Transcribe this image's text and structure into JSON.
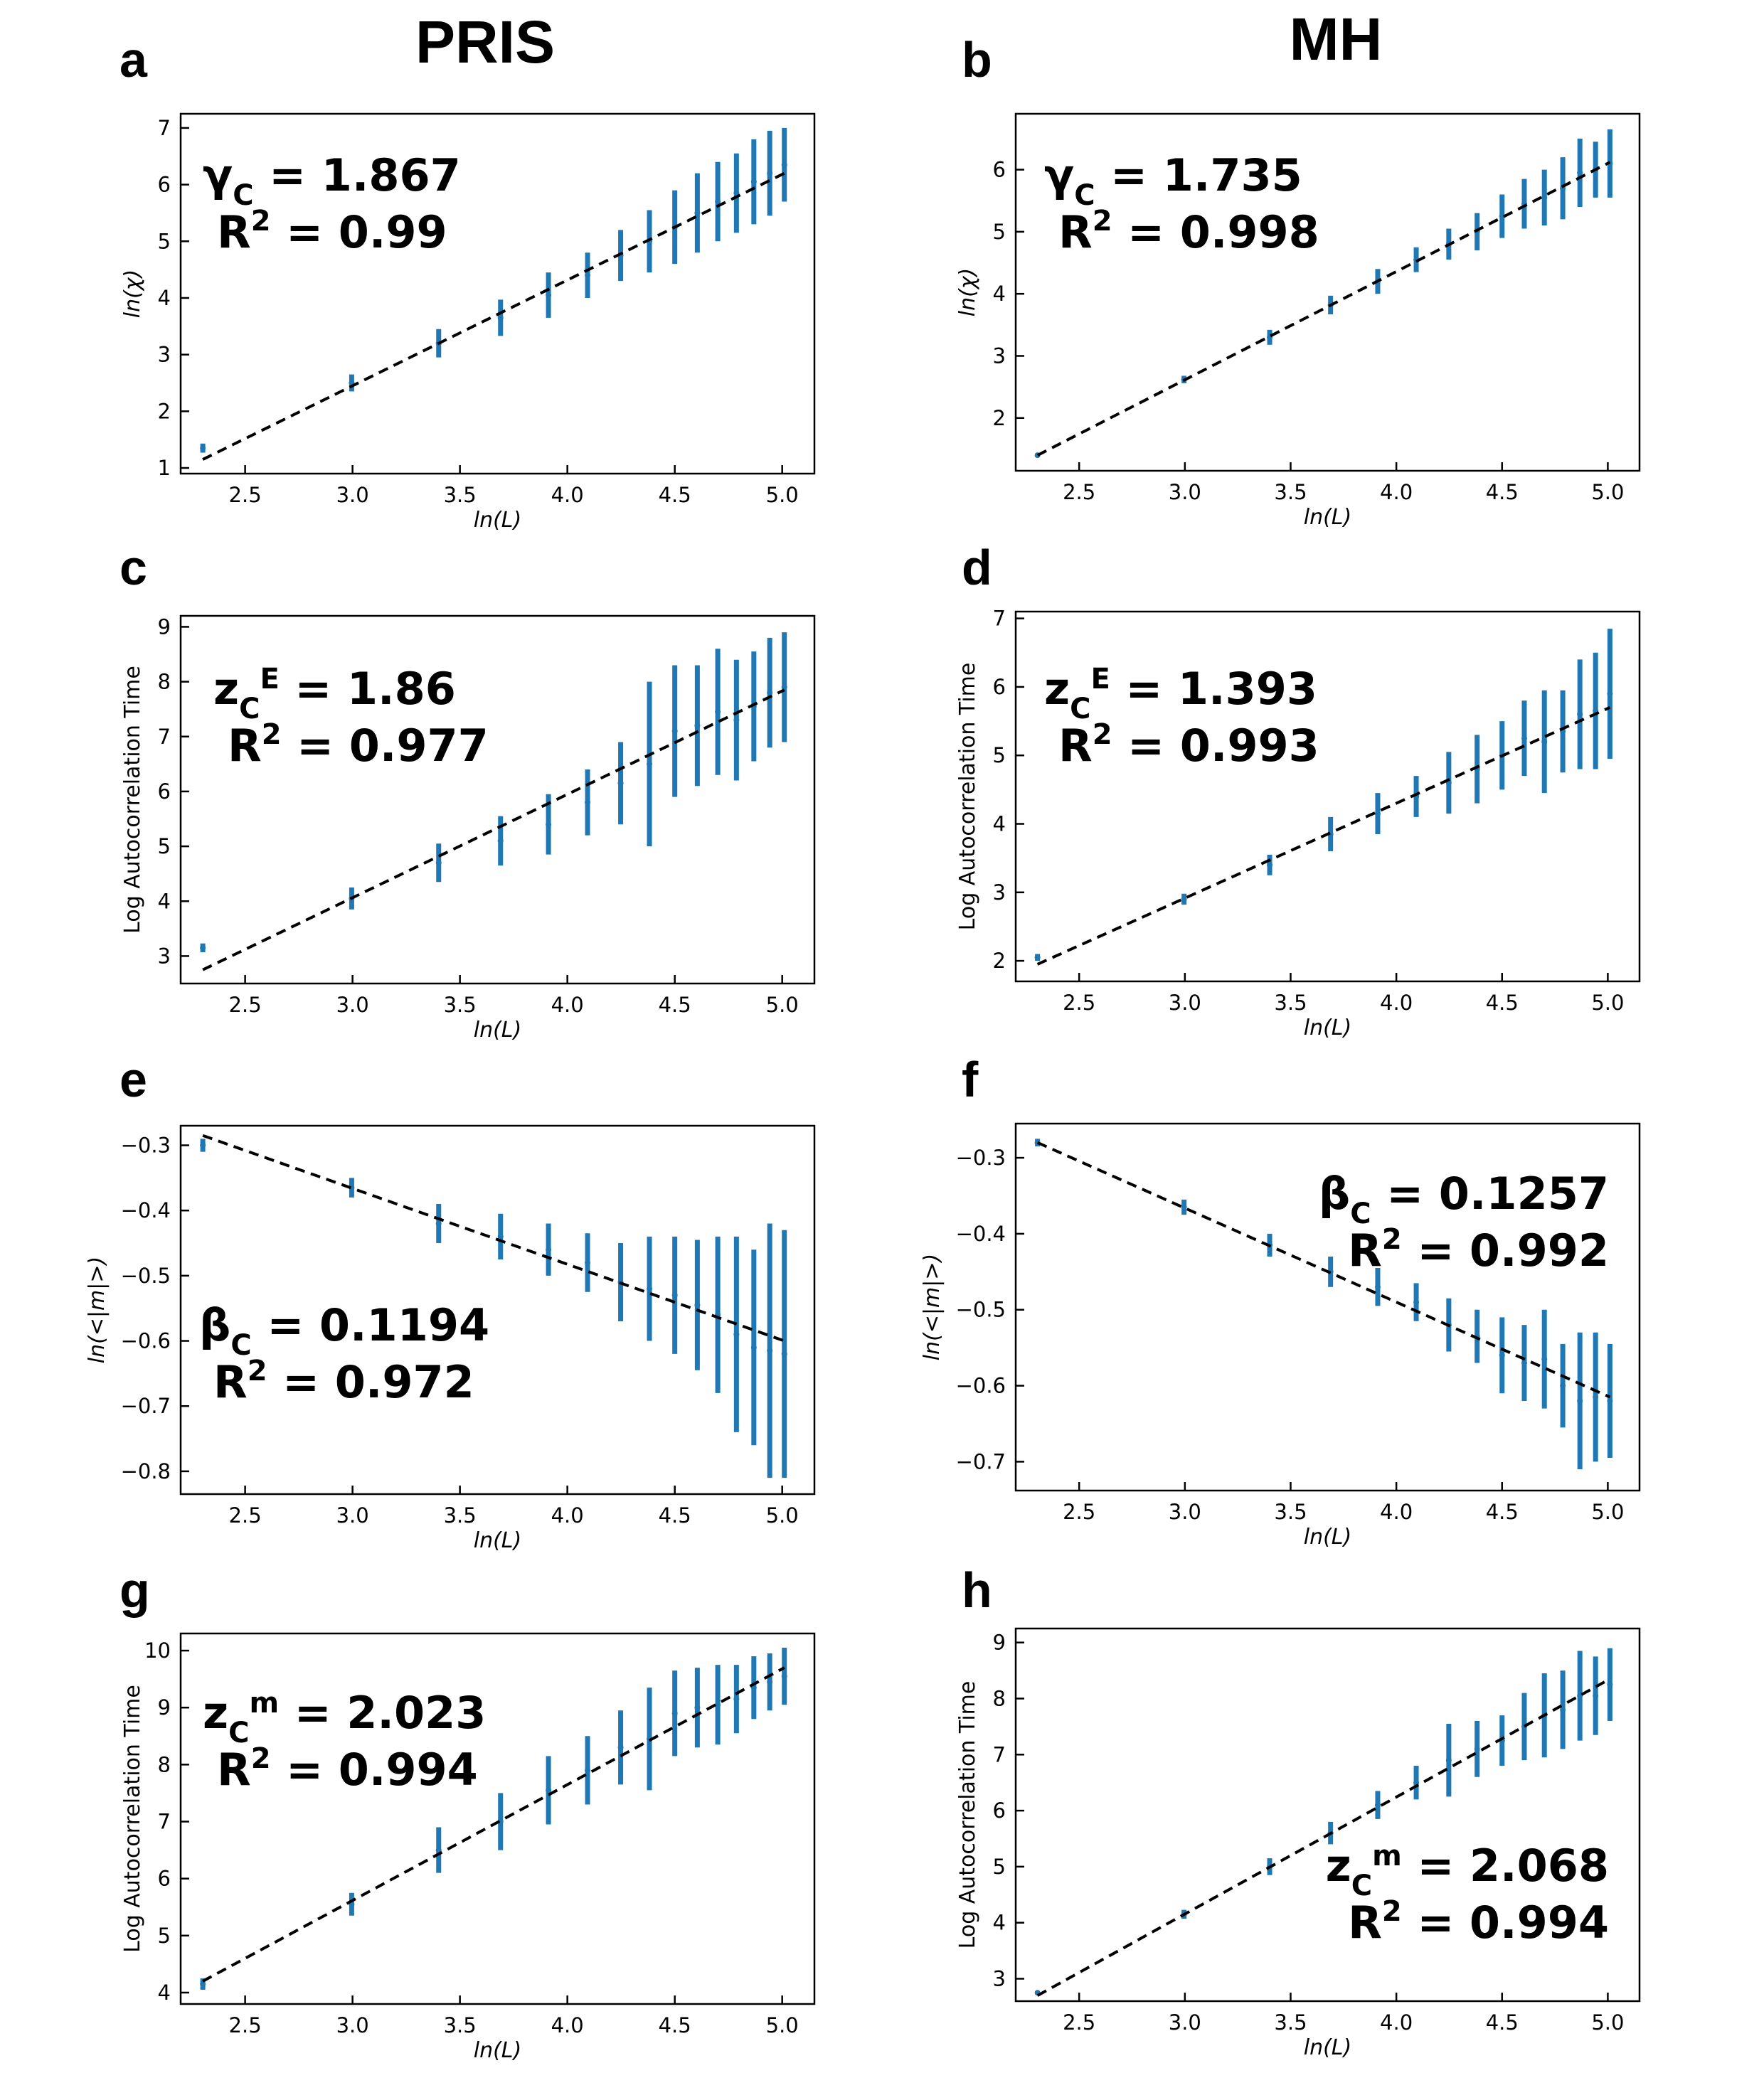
{
  "columns": [
    "PRIS",
    "MH"
  ],
  "colors": {
    "errorbar": "#1f77b4",
    "fit": "#000000"
  },
  "chart_data": [
    {
      "id": "a",
      "column": "PRIS",
      "type": "scatter",
      "xlabel": "ln(L)",
      "ylabel": "ln(χ)",
      "xlim": [
        2.2,
        5.15
      ],
      "ylim": [
        0.9,
        7.25
      ],
      "xticks": [
        2.5,
        3.0,
        3.5,
        4.0,
        4.5,
        5.0
      ],
      "xtick_labels": [
        "2.5",
        "3.0",
        "3.5",
        "4.0",
        "4.5",
        "5.0"
      ],
      "yticks": [
        1,
        2,
        3,
        4,
        5,
        6,
        7
      ],
      "ytick_labels": [
        "1",
        "2",
        "3",
        "4",
        "5",
        "6",
        "7"
      ],
      "x": [
        2.303,
        2.996,
        3.401,
        3.689,
        3.912,
        4.094,
        4.248,
        4.382,
        4.5,
        4.605,
        4.7,
        4.787,
        4.868,
        4.942,
        5.01
      ],
      "y": [
        1.35,
        2.5,
        3.2,
        3.65,
        4.05,
        4.4,
        4.75,
        5.0,
        5.25,
        5.5,
        5.7,
        5.85,
        6.05,
        6.2,
        6.35
      ],
      "yerr": [
        0.08,
        0.15,
        0.25,
        0.32,
        0.4,
        0.4,
        0.45,
        0.55,
        0.65,
        0.7,
        0.7,
        0.7,
        0.75,
        0.75,
        0.65
      ],
      "fit": {
        "x": [
          2.303,
          5.01
        ],
        "y": [
          1.15,
          6.2
        ]
      },
      "annotation": {
        "line1_sym": "γ",
        "line1_sub": "C",
        "line1_sup": "",
        "line1_val": " = 1.867",
        "line2_sym": "R",
        "line2_sup": "2",
        "line2_val": " = 0.99"
      }
    },
    {
      "id": "b",
      "column": "MH",
      "type": "scatter",
      "xlabel": "ln(L)",
      "ylabel": "ln(χ)",
      "xlim": [
        2.2,
        5.15
      ],
      "ylim": [
        1.15,
        6.9
      ],
      "xticks": [
        2.5,
        3.0,
        3.5,
        4.0,
        4.5,
        5.0
      ],
      "xtick_labels": [
        "2.5",
        "3.0",
        "3.5",
        "4.0",
        "4.5",
        "5.0"
      ],
      "yticks": [
        2,
        3,
        4,
        5,
        6
      ],
      "ytick_labels": [
        "2",
        "3",
        "4",
        "5",
        "6"
      ],
      "x": [
        2.303,
        2.996,
        3.401,
        3.689,
        3.912,
        4.094,
        4.248,
        4.382,
        4.5,
        4.605,
        4.7,
        4.787,
        4.868,
        4.942,
        5.01
      ],
      "y": [
        1.4,
        2.62,
        3.3,
        3.82,
        4.2,
        4.55,
        4.8,
        5.0,
        5.25,
        5.45,
        5.55,
        5.7,
        5.95,
        6.0,
        6.1
      ],
      "yerr": [
        0.03,
        0.06,
        0.12,
        0.15,
        0.2,
        0.2,
        0.25,
        0.3,
        0.35,
        0.4,
        0.45,
        0.5,
        0.55,
        0.45,
        0.55
      ],
      "fit": {
        "x": [
          2.303,
          5.01
        ],
        "y": [
          1.4,
          6.12
        ]
      },
      "annotation": {
        "line1_sym": "γ",
        "line1_sub": "C",
        "line1_sup": "",
        "line1_val": " = 1.735",
        "line2_sym": "R",
        "line2_sup": "2",
        "line2_val": " = 0.998"
      }
    },
    {
      "id": "c",
      "column": "PRIS",
      "type": "scatter",
      "xlabel": "ln(L)",
      "ylabel": "Log Autocorrelation Time",
      "xlim": [
        2.2,
        5.15
      ],
      "ylim": [
        2.5,
        9.2
      ],
      "xticks": [
        2.5,
        3.0,
        3.5,
        4.0,
        4.5,
        5.0
      ],
      "xtick_labels": [
        "2.5",
        "3.0",
        "3.5",
        "4.0",
        "4.5",
        "5.0"
      ],
      "yticks": [
        3,
        4,
        5,
        6,
        7,
        8,
        9
      ],
      "ytick_labels": [
        "3",
        "4",
        "5",
        "6",
        "7",
        "8",
        "9"
      ],
      "x": [
        2.303,
        2.996,
        3.401,
        3.689,
        3.912,
        4.094,
        4.248,
        4.382,
        4.5,
        4.605,
        4.7,
        4.787,
        4.868,
        4.942,
        5.01
      ],
      "y": [
        3.15,
        4.05,
        4.7,
        5.1,
        5.4,
        5.8,
        6.15,
        6.5,
        7.1,
        7.2,
        7.45,
        7.3,
        7.55,
        7.8,
        7.9
      ],
      "yerr": [
        0.08,
        0.2,
        0.35,
        0.45,
        0.55,
        0.6,
        0.75,
        1.5,
        1.2,
        1.1,
        1.15,
        1.1,
        1.0,
        1.0,
        1.0
      ],
      "fit": {
        "x": [
          2.303,
          5.01
        ],
        "y": [
          2.75,
          7.85
        ]
      },
      "annotation": {
        "line1_sym": "z",
        "line1_sub": "C",
        "line1_sup": "E",
        "line1_val": " = 1.86",
        "line2_sym": "R",
        "line2_sup": "2",
        "line2_val": " = 0.977"
      }
    },
    {
      "id": "d",
      "column": "MH",
      "type": "scatter",
      "xlabel": "ln(L)",
      "ylabel": "Log Autocorrelation Time",
      "xlim": [
        2.2,
        5.15
      ],
      "ylim": [
        1.7,
        7.1
      ],
      "xticks": [
        2.5,
        3.0,
        3.5,
        4.0,
        4.5,
        5.0
      ],
      "xtick_labels": [
        "2.5",
        "3.0",
        "3.5",
        "4.0",
        "4.5",
        "5.0"
      ],
      "yticks": [
        2,
        3,
        4,
        5,
        6,
        7
      ],
      "ytick_labels": [
        "2",
        "3",
        "4",
        "5",
        "6",
        "7"
      ],
      "x": [
        2.303,
        2.996,
        3.401,
        3.689,
        3.912,
        4.094,
        4.248,
        4.382,
        4.5,
        4.605,
        4.7,
        4.787,
        4.868,
        4.942,
        5.01
      ],
      "y": [
        2.05,
        2.9,
        3.4,
        3.85,
        4.15,
        4.4,
        4.6,
        4.8,
        5.0,
        5.25,
        5.2,
        5.35,
        5.6,
        5.65,
        5.9
      ],
      "yerr": [
        0.05,
        0.08,
        0.15,
        0.25,
        0.3,
        0.3,
        0.45,
        0.5,
        0.5,
        0.55,
        0.75,
        0.6,
        0.8,
        0.85,
        0.95
      ],
      "fit": {
        "x": [
          2.303,
          5.01
        ],
        "y": [
          1.95,
          5.7
        ]
      },
      "annotation": {
        "line1_sym": "z",
        "line1_sub": "C",
        "line1_sup": "E",
        "line1_val": " = 1.393",
        "line2_sym": "R",
        "line2_sup": "2",
        "line2_val": " = 0.993"
      }
    },
    {
      "id": "e",
      "column": "PRIS",
      "type": "scatter",
      "xlabel": "ln(L)",
      "ylabel": "ln(<|m|>)",
      "xlim": [
        2.2,
        5.15
      ],
      "ylim": [
        -0.835,
        -0.27
      ],
      "xticks": [
        2.5,
        3.0,
        3.5,
        4.0,
        4.5,
        5.0
      ],
      "xtick_labels": [
        "2.5",
        "3.0",
        "3.5",
        "4.0",
        "4.5",
        "5.0"
      ],
      "yticks": [
        -0.3,
        -0.4,
        -0.5,
        -0.6,
        -0.7,
        -0.8
      ],
      "ytick_labels": [
        "−0.3",
        "−0.4",
        "−0.5",
        "−0.6",
        "−0.7",
        "−0.8"
      ],
      "x": [
        2.303,
        2.996,
        3.401,
        3.689,
        3.912,
        4.094,
        4.248,
        4.382,
        4.5,
        4.605,
        4.7,
        4.787,
        4.868,
        4.942,
        5.01
      ],
      "y": [
        -0.3,
        -0.365,
        -0.42,
        -0.44,
        -0.46,
        -0.48,
        -0.51,
        -0.52,
        -0.53,
        -0.545,
        -0.56,
        -0.59,
        -0.61,
        -0.615,
        -0.62
      ],
      "yerr": [
        0.01,
        0.015,
        0.03,
        0.035,
        0.04,
        0.045,
        0.06,
        0.08,
        0.09,
        0.1,
        0.12,
        0.15,
        0.15,
        0.195,
        0.19
      ],
      "fit": {
        "x": [
          2.303,
          5.01
        ],
        "y": [
          -0.285,
          -0.6
        ]
      },
      "annotation": {
        "line1_sym": "β",
        "line1_sub": "C",
        "line1_sup": "",
        "line1_val": " = 0.1194",
        "line2_sym": "R",
        "line2_sup": "2",
        "line2_val": " = 0.972"
      }
    },
    {
      "id": "f",
      "column": "MH",
      "type": "scatter",
      "xlabel": "ln(L)",
      "ylabel": "ln(<|m|>)",
      "xlim": [
        2.2,
        5.15
      ],
      "ylim": [
        -0.738,
        -0.255
      ],
      "xticks": [
        2.5,
        3.0,
        3.5,
        4.0,
        4.5,
        5.0
      ],
      "xtick_labels": [
        "2.5",
        "3.0",
        "3.5",
        "4.0",
        "4.5",
        "5.0"
      ],
      "yticks": [
        -0.3,
        -0.4,
        -0.5,
        -0.6,
        -0.7
      ],
      "ytick_labels": [
        "−0.3",
        "−0.4",
        "−0.5",
        "−0.6",
        "−0.7"
      ],
      "x": [
        2.303,
        2.996,
        3.401,
        3.689,
        3.912,
        4.094,
        4.248,
        4.382,
        4.5,
        4.605,
        4.7,
        4.787,
        4.868,
        4.942,
        5.01
      ],
      "y": [
        -0.28,
        -0.365,
        -0.415,
        -0.45,
        -0.47,
        -0.49,
        -0.52,
        -0.535,
        -0.56,
        -0.57,
        -0.565,
        -0.6,
        -0.62,
        -0.615,
        -0.62
      ],
      "yerr": [
        0.005,
        0.01,
        0.015,
        0.02,
        0.025,
        0.025,
        0.035,
        0.035,
        0.05,
        0.05,
        0.065,
        0.055,
        0.09,
        0.085,
        0.075
      ],
      "fit": {
        "x": [
          2.303,
          5.01
        ],
        "y": [
          -0.28,
          -0.615
        ]
      },
      "annotation": {
        "line1_sym": "β",
        "line1_sub": "C",
        "line1_sup": "",
        "line1_val": " = 0.1257",
        "line2_sym": "R",
        "line2_sup": "2",
        "line2_val": " = 0.992"
      }
    },
    {
      "id": "g",
      "column": "PRIS",
      "type": "scatter",
      "xlabel": "ln(L)",
      "ylabel": "Log Autocorrelation Time",
      "xlim": [
        2.2,
        5.15
      ],
      "ylim": [
        3.8,
        10.3
      ],
      "xticks": [
        2.5,
        3.0,
        3.5,
        4.0,
        4.5,
        5.0
      ],
      "xtick_labels": [
        "2.5",
        "3.0",
        "3.5",
        "4.0",
        "4.5",
        "5.0"
      ],
      "yticks": [
        4,
        5,
        6,
        7,
        8,
        9,
        10
      ],
      "ytick_labels": [
        "4",
        "5",
        "6",
        "7",
        "8",
        "9",
        "10"
      ],
      "x": [
        2.303,
        2.996,
        3.401,
        3.689,
        3.912,
        4.094,
        4.248,
        4.382,
        4.5,
        4.605,
        4.7,
        4.787,
        4.868,
        4.942,
        5.01
      ],
      "y": [
        4.15,
        5.55,
        6.5,
        7.0,
        7.55,
        7.9,
        8.3,
        8.45,
        8.9,
        9.0,
        9.05,
        9.15,
        9.35,
        9.45,
        9.55
      ],
      "yerr": [
        0.1,
        0.2,
        0.4,
        0.5,
        0.6,
        0.6,
        0.65,
        0.9,
        0.75,
        0.7,
        0.7,
        0.6,
        0.55,
        0.5,
        0.5
      ],
      "fit": {
        "x": [
          2.303,
          5.01
        ],
        "y": [
          4.2,
          9.7
        ]
      },
      "annotation": {
        "line1_sym": "z",
        "line1_sub": "C",
        "line1_sup": "m",
        "line1_val": " = 2.023",
        "line2_sym": "R",
        "line2_sup": "2",
        "line2_val": " = 0.994"
      }
    },
    {
      "id": "h",
      "column": "MH",
      "type": "scatter",
      "xlabel": "ln(L)",
      "ylabel": "Log Autocorrelation Time",
      "xlim": [
        2.2,
        5.15
      ],
      "ylim": [
        2.6,
        9.25
      ],
      "xticks": [
        2.5,
        3.0,
        3.5,
        4.0,
        4.5,
        5.0
      ],
      "xtick_labels": [
        "2.5",
        "3.0",
        "3.5",
        "4.0",
        "4.5",
        "5.0"
      ],
      "yticks": [
        3,
        4,
        5,
        6,
        7,
        8,
        9
      ],
      "ytick_labels": [
        "3",
        "4",
        "5",
        "6",
        "7",
        "8",
        "9"
      ],
      "x": [
        2.303,
        2.996,
        3.401,
        3.689,
        3.912,
        4.094,
        4.248,
        4.382,
        4.5,
        4.605,
        4.7,
        4.787,
        4.868,
        4.942,
        5.01
      ],
      "y": [
        2.75,
        4.15,
        5.0,
        5.6,
        6.1,
        6.5,
        6.9,
        7.1,
        7.25,
        7.5,
        7.7,
        7.8,
        8.05,
        8.05,
        8.25
      ],
      "yerr": [
        0.03,
        0.08,
        0.15,
        0.2,
        0.25,
        0.3,
        0.65,
        0.5,
        0.45,
        0.6,
        0.75,
        0.7,
        0.8,
        0.7,
        0.65
      ],
      "fit": {
        "x": [
          2.303,
          5.01
        ],
        "y": [
          2.7,
          8.35
        ]
      },
      "annotation": {
        "line1_sym": "z",
        "line1_sub": "C",
        "line1_sup": "m",
        "line1_val": " = 2.068",
        "line2_sym": "R",
        "line2_sup": "2",
        "line2_val": " = 0.994"
      }
    }
  ]
}
